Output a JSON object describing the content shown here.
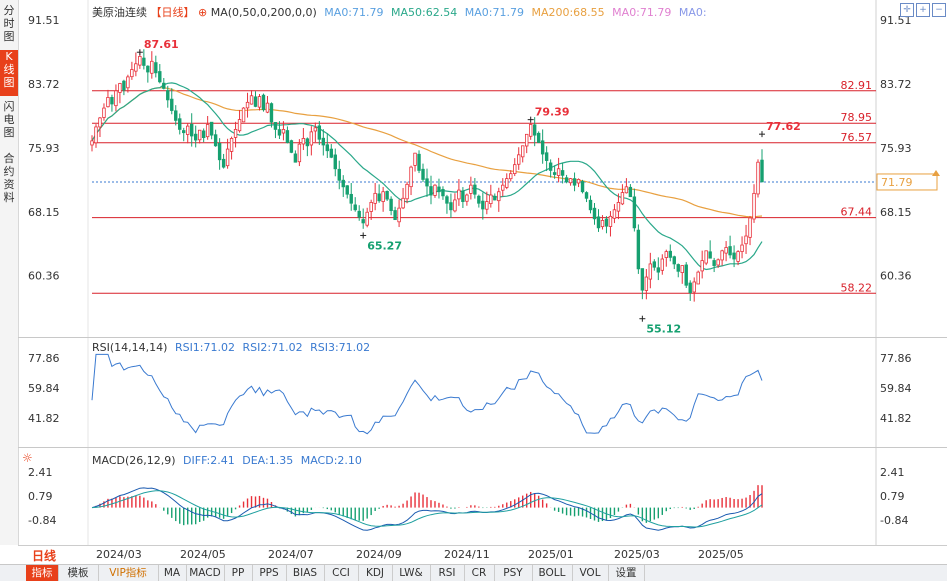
{
  "sidebar": {
    "tabs": [
      {
        "label": "分时图"
      },
      {
        "label": "K线图",
        "active": true
      },
      {
        "label": "闪电图"
      },
      {
        "label": "合约资料"
      }
    ]
  },
  "header": {
    "instrument": "美原油连续",
    "period": "【日线】",
    "ma_params": "MA(0,50,0,200,0,0)",
    "ma_values": [
      {
        "text": "MA0:71.79",
        "color": "#5aa0e0"
      },
      {
        "text": "MA50:62.54",
        "color": "#2aa88a"
      },
      {
        "text": "MA0:71.79",
        "color": "#5aa0e0"
      },
      {
        "text": "MA200:68.55",
        "color": "#e8a040"
      },
      {
        "text": "MA0:71.79",
        "color": "#e080d0"
      },
      {
        "text": "MA0:",
        "color": "#8898e8"
      }
    ]
  },
  "price_axis": {
    "ticks": [
      "91.51",
      "83.72",
      "75.93",
      "68.15",
      "60.36"
    ],
    "current": "71.79"
  },
  "price_lines": [
    {
      "label": "82.91",
      "value": 82.91
    },
    {
      "label": "78.95",
      "value": 78.95
    },
    {
      "label": "76.57",
      "value": 76.57
    },
    {
      "label": "67.44",
      "value": 67.44
    },
    {
      "label": "58.22",
      "value": 58.22
    }
  ],
  "annotations": [
    {
      "text": "87.61",
      "value": 87.61,
      "index": 12,
      "kind": "high"
    },
    {
      "text": "79.39",
      "value": 79.39,
      "index": 110,
      "kind": "high"
    },
    {
      "text": "77.62",
      "value": 77.62,
      "index": 168,
      "kind": "high"
    },
    {
      "text": "65.27",
      "value": 65.27,
      "index": 68,
      "kind": "low"
    },
    {
      "text": "55.12",
      "value": 55.12,
      "index": 138,
      "kind": "low"
    }
  ],
  "rsi": {
    "title": "RSI(14,14,14)",
    "values": [
      {
        "text": "RSI1:71.02",
        "color": "#3a7ad0"
      },
      {
        "text": "RSI2:71.02",
        "color": "#3a7ad0"
      },
      {
        "text": "RSI3:71.02",
        "color": "#3a7ad0"
      }
    ],
    "ticks": [
      "77.86",
      "59.84",
      "41.82"
    ]
  },
  "macd": {
    "title": "MACD(26,12,9)",
    "values": [
      {
        "text": "DIFF:2.41",
        "color": "#3a7ad0"
      },
      {
        "text": "DEA:1.35",
        "color": "#3a7ad0"
      },
      {
        "text": "MACD:2.10",
        "color": "#3a7ad0"
      }
    ],
    "ticks": [
      "2.41",
      "0.79",
      "-0.84"
    ]
  },
  "date_axis": {
    "period_button": "日线",
    "labels": [
      "2024/03",
      "2024/05",
      "2024/07",
      "2024/09",
      "2024/11",
      "2025/01",
      "2025/03",
      "2025/05"
    ]
  },
  "bottom_tabs": [
    {
      "label": "指标",
      "active": true
    },
    {
      "label": "模板"
    },
    {
      "label": "VIP指标",
      "vip": true
    },
    {
      "label": "MA"
    },
    {
      "label": "MACD"
    },
    {
      "label": "PP"
    },
    {
      "label": "PPS"
    },
    {
      "label": "BIAS"
    },
    {
      "label": "CCI"
    },
    {
      "label": "KDJ"
    },
    {
      "label": "LW&"
    },
    {
      "label": "RSI"
    },
    {
      "label": "CR"
    },
    {
      "label": "PSY"
    },
    {
      "label": "BOLL"
    },
    {
      "label": "VOL"
    },
    {
      "label": "设置"
    }
  ],
  "colors": {
    "up": "#e8303a",
    "down": "#16a070",
    "hline": "#d8202a",
    "ma50": "#2aa88a",
    "ma200": "#e8a040",
    "indicator": "#3a7ad0",
    "accent": "#e8401a"
  },
  "chart_data": {
    "type": "candlestick",
    "price_range": [
      53.5,
      93.0
    ],
    "closes": [
      76.8,
      78.5,
      79.6,
      80.8,
      82.1,
      81.3,
      82.9,
      83.8,
      83.0,
      84.6,
      85.5,
      86.2,
      87.1,
      86.0,
      85.2,
      86.5,
      85.1,
      84.0,
      83.2,
      81.8,
      80.5,
      79.3,
      78.2,
      77.8,
      78.6,
      77.4,
      76.9,
      78.1,
      77.2,
      78.8,
      77.5,
      76.2,
      74.5,
      73.6,
      75.8,
      77.1,
      78.2,
      79.4,
      80.8,
      81.5,
      82.3,
      81.0,
      82.2,
      80.6,
      81.4,
      79.1,
      78.2,
      77.5,
      78.2,
      76.6,
      75.4,
      74.2,
      76.4,
      77.1,
      76.2,
      77.9,
      78.4,
      77.0,
      76.3,
      75.6,
      74.8,
      73.4,
      72.0,
      71.2,
      70.3,
      69.2,
      68.4,
      67.5,
      66.8,
      68.1,
      69.3,
      70.4,
      69.5,
      70.6,
      69.7,
      68.3,
      67.2,
      68.6,
      69.8,
      71.5,
      73.6,
      75.3,
      73.2,
      72.1,
      71.3,
      70.2,
      71.4,
      70.6,
      70.1,
      69.2,
      68.4,
      69.6,
      70.8,
      69.4,
      70.2,
      71.4,
      70.3,
      69.2,
      68.5,
      69.4,
      70.2,
      69.6,
      70.6,
      71.4,
      72.2,
      72.8,
      73.9,
      75.1,
      76.2,
      77.6,
      78.8,
      77.5,
      76.6,
      75.2,
      74.4,
      73.2,
      72.7,
      73.4,
      72.6,
      71.8,
      72.2,
      71.4,
      72.1,
      70.6,
      69.8,
      68.4,
      67.3,
      66.2,
      67.1,
      66.4,
      67.6,
      68.4,
      69.3,
      70.5,
      71.2,
      70.0,
      66.2,
      61.2,
      58.6,
      60.2,
      61.8,
      61.4,
      60.8,
      62.4,
      63.3,
      62.6,
      61.8,
      60.9,
      61.6,
      59.2,
      58.3,
      59.6,
      60.8,
      62.2,
      63.4,
      62.5,
      61.6,
      62.3,
      63.4,
      63.8,
      62.9,
      62.4,
      63.3,
      64.1,
      65.2,
      67.4,
      70.4,
      74.2,
      71.8
    ]
  }
}
